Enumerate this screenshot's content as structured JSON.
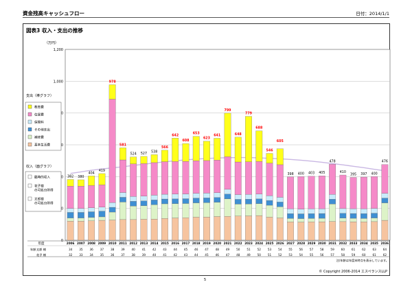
{
  "header": {
    "title": "資金残高キャッシュフロー",
    "date": "日付：2014/1/1"
  },
  "figure_title": "図表3  収入・支出の推移",
  "footer": {
    "copyright": "© Copyright 2006-2014 エスペランスLLP",
    "page": "5",
    "note": "注)年齢は年度末時点を表示しています。"
  },
  "age_table": {
    "header": "年度",
    "row_group_label": "年齢",
    "husband_label": "太郎 様",
    "wife_label": "花子 様",
    "husband": [
      "34",
      "35",
      "36",
      "37",
      "38",
      "39",
      "40",
      "41",
      "42",
      "43",
      "44",
      "45",
      "46",
      "47",
      "48",
      "49",
      "50",
      "51",
      "52",
      "53",
      "54",
      "55",
      "56",
      "57",
      "58",
      "59",
      "60",
      "61",
      "62",
      "63",
      "64"
    ],
    "wife": [
      "32",
      "33",
      "34",
      "35",
      "36",
      "37",
      "38",
      "39",
      "40",
      "41",
      "42",
      "43",
      "44",
      "45",
      "46",
      "47",
      "48",
      "49",
      "50",
      "51",
      "52",
      "53",
      "54",
      "55",
      "56",
      "57",
      "58",
      "59",
      "60",
      "61",
      "62"
    ]
  },
  "colors": {
    "education": "#ffff1a",
    "living": "#f58ac8",
    "insurance": "#c9ecfb",
    "other": "#3f8fd2",
    "housing": "#ddf3c8",
    "basic": "#f6c49f",
    "line": "#c9b7e3",
    "total": "#ff0000"
  },
  "chart_data": {
    "type": "bar",
    "ylabel": "（万円）",
    "ylim": [
      0,
      1200
    ],
    "yticks": [
      "0",
      "200",
      "400",
      "600",
      "800",
      "1,000",
      "1,200"
    ],
    "categories": [
      "2006",
      "2007",
      "2008",
      "2009",
      "2010",
      "2011",
      "2012",
      "2013",
      "2014",
      "2015",
      "2016",
      "2017",
      "2018",
      "2019",
      "2020",
      "2021",
      "2022",
      "2023",
      "2024",
      "2025",
      "2026",
      "2027",
      "2028",
      "2029",
      "2030",
      "2031",
      "2032",
      "2033",
      "2034",
      "2035",
      "2036"
    ],
    "totals": [
      382,
      380,
      404,
      419,
      978,
      581,
      524,
      527,
      538,
      566,
      642,
      608,
      653,
      623,
      641,
      799,
      648,
      779,
      688,
      546,
      605,
      398,
      400,
      403,
      405,
      478,
      410,
      395,
      397,
      400,
      476
    ],
    "series": [
      {
        "name": "基本生活費",
        "color_key": "basic",
        "values": [
          120,
          120,
          122,
          125,
          127,
          130,
          130,
          132,
          133,
          137,
          140,
          141,
          145,
          146,
          149,
          150,
          152,
          153,
          155,
          145,
          140,
          115,
          114,
          115,
          116,
          118,
          117,
          116,
          115,
          117,
          125
        ]
      },
      {
        "name": "補修費",
        "color_key": "housing",
        "values": [
          20,
          20,
          21,
          22,
          50,
          110,
          85,
          85,
          90,
          92,
          90,
          90,
          90,
          90,
          90,
          110,
          75,
          75,
          75,
          75,
          70,
          22,
          22,
          22,
          22,
          110,
          22,
          22,
          22,
          23,
          110
        ]
      },
      {
        "name": "その他支出",
        "color_key": "other",
        "values": [
          35,
          35,
          36,
          36,
          30,
          30,
          30,
          30,
          30,
          30,
          30,
          30,
          30,
          30,
          30,
          30,
          30,
          30,
          30,
          30,
          30,
          30,
          30,
          30,
          30,
          30,
          30,
          30,
          30,
          30,
          30
        ]
      },
      {
        "name": "保険料",
        "color_key": "insurance",
        "values": [
          25,
          25,
          25,
          25,
          30,
          30,
          30,
          30,
          30,
          30,
          30,
          30,
          30,
          30,
          30,
          30,
          30,
          30,
          30,
          30,
          30,
          30,
          30,
          30,
          30,
          30,
          30,
          30,
          30,
          30,
          30
        ]
      },
      {
        "name": "住居費",
        "color_key": "living",
        "values": [
          140,
          140,
          140,
          140,
          650,
          205,
          205,
          205,
          205,
          205,
          205,
          205,
          205,
          205,
          205,
          205,
          205,
          205,
          205,
          205,
          205,
          201,
          204,
          206,
          207,
          190,
          211,
          197,
          200,
          200,
          181
        ]
      },
      {
        "name": "教育費",
        "color_key": "education",
        "values": [
          42,
          40,
          60,
          71,
          91,
          76,
          44,
          45,
          50,
          72,
          147,
          112,
          153,
          122,
          137,
          274,
          156,
          286,
          193,
          61,
          100,
          0,
          0,
          0,
          0,
          0,
          0,
          0,
          0,
          0,
          0
        ]
      }
    ],
    "income_line": [
      420,
      430,
      440,
      448,
      455,
      462,
      470,
      478,
      486,
      493,
      500,
      505,
      510,
      514,
      517,
      519,
      520,
      520,
      518,
      515,
      512,
      508,
      503,
      497,
      490,
      482,
      474,
      465,
      456,
      446,
      437
    ],
    "legend_expense": {
      "title": "支出（棒グラフ）",
      "items": [
        {
          "label": "教育費",
          "color_key": "education"
        },
        {
          "label": "住居費",
          "color_key": "living"
        },
        {
          "label": "保険料",
          "color_key": "insurance"
        },
        {
          "label": "その他支出",
          "color_key": "other"
        },
        {
          "label": "補修費",
          "color_key": "housing"
        },
        {
          "label": "基本生活費",
          "color_key": "basic"
        }
      ]
    },
    "legend_income": {
      "title": "収入（面グラフ）",
      "items": [
        "臨時的収入",
        "花子様の可処分所得",
        "太郎様の可処分所得"
      ]
    }
  }
}
